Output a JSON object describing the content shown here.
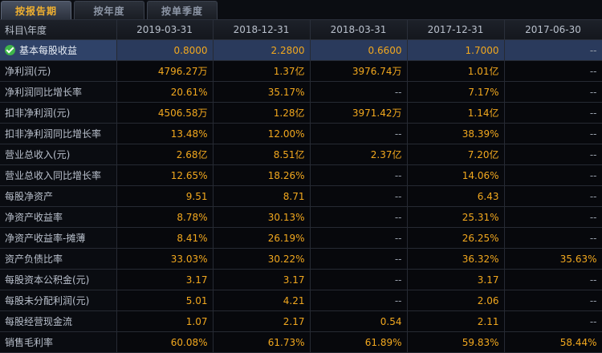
{
  "tabs": [
    {
      "label": "按报告期",
      "active": true
    },
    {
      "label": "按年度",
      "active": false
    },
    {
      "label": "按单季度",
      "active": false
    }
  ],
  "table": {
    "header_label": "科目\\年度",
    "columns": [
      "2019-03-31",
      "2018-12-31",
      "2018-03-31",
      "2017-12-31",
      "2017-06-30"
    ],
    "rows": [
      {
        "label": "基本每股收益",
        "values": [
          "0.8000",
          "2.2800",
          "0.6600",
          "1.7000",
          "--"
        ]
      },
      {
        "label": "净利润(元)",
        "values": [
          "4796.27万",
          "1.37亿",
          "3976.74万",
          "1.01亿",
          "--"
        ]
      },
      {
        "label": "净利润同比增长率",
        "values": [
          "20.61%",
          "35.17%",
          "--",
          "7.17%",
          "--"
        ]
      },
      {
        "label": "扣非净利润(元)",
        "values": [
          "4506.58万",
          "1.28亿",
          "3971.42万",
          "1.14亿",
          "--"
        ]
      },
      {
        "label": "扣非净利润同比增长率",
        "values": [
          "13.48%",
          "12.00%",
          "--",
          "38.39%",
          "--"
        ]
      },
      {
        "label": "营业总收入(元)",
        "values": [
          "2.68亿",
          "8.51亿",
          "2.37亿",
          "7.20亿",
          "--"
        ]
      },
      {
        "label": "营业总收入同比增长率",
        "values": [
          "12.65%",
          "18.26%",
          "--",
          "14.06%",
          "--"
        ]
      },
      {
        "label": "每股净资产",
        "values": [
          "9.51",
          "8.71",
          "--",
          "6.43",
          "--"
        ]
      },
      {
        "label": "净资产收益率",
        "values": [
          "8.78%",
          "30.13%",
          "--",
          "25.31%",
          "--"
        ]
      },
      {
        "label": "净资产收益率-摊薄",
        "values": [
          "8.41%",
          "26.19%",
          "--",
          "26.25%",
          "--"
        ]
      },
      {
        "label": "资产负债比率",
        "values": [
          "33.03%",
          "30.22%",
          "--",
          "36.32%",
          "35.63%"
        ]
      },
      {
        "label": "每股资本公积金(元)",
        "values": [
          "3.17",
          "3.17",
          "--",
          "3.17",
          "--"
        ]
      },
      {
        "label": "每股未分配利润(元)",
        "values": [
          "5.01",
          "4.21",
          "--",
          "2.06",
          "--"
        ]
      },
      {
        "label": "每股经营现金流",
        "values": [
          "1.07",
          "2.17",
          "0.54",
          "2.11",
          "--"
        ]
      },
      {
        "label": "销售毛利率",
        "values": [
          "60.08%",
          "61.73%",
          "61.89%",
          "59.83%",
          "58.44%"
        ]
      }
    ]
  },
  "selected_row_icon": "check-circle-icon",
  "colors": {
    "value": "#f2a81e",
    "active_tab": "#f0b030",
    "selected_row": "#2a3a5c"
  }
}
